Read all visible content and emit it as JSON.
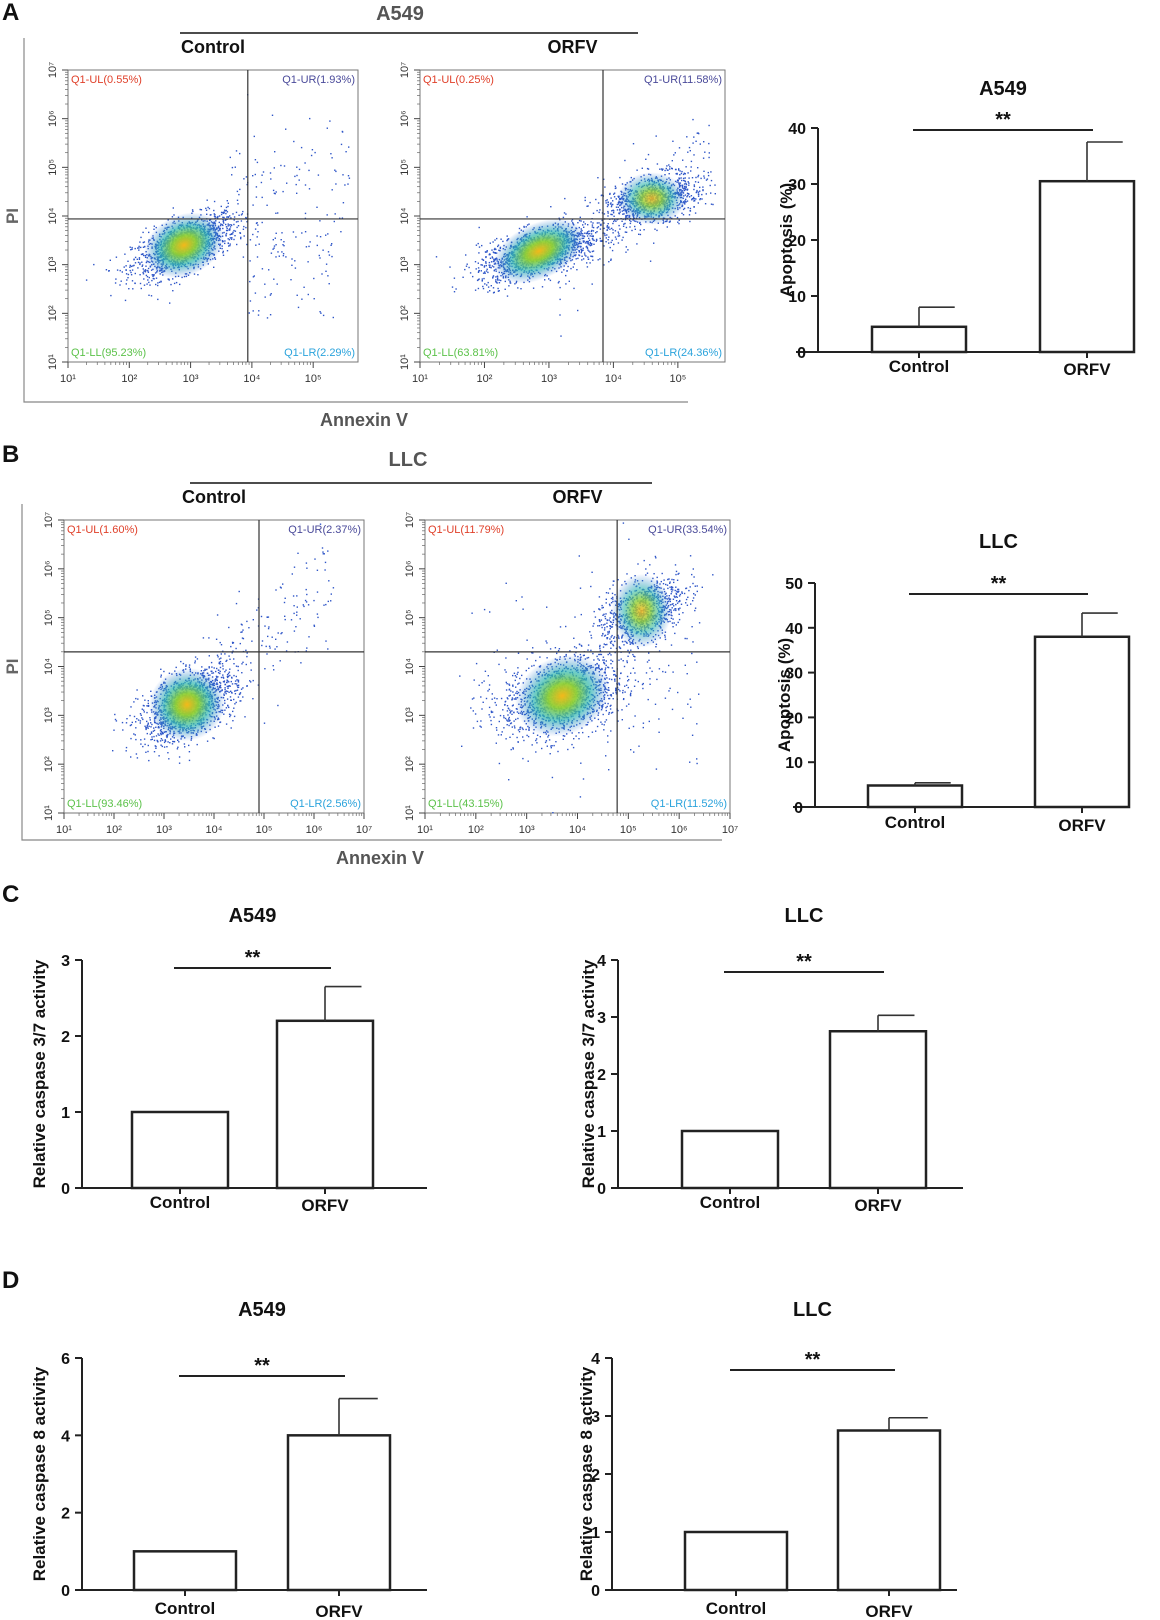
{
  "chart_data": [
    {
      "id": "A_flow_control",
      "type": "scatter",
      "panel": "A",
      "group_title": "A549",
      "title": "Control",
      "xlabel": "Annexin V",
      "ylabel": "PI",
      "scale": "log10",
      "x_ticks": [
        "10¹",
        "10²",
        "10³",
        "10⁴",
        "10⁵"
      ],
      "y_ticks": [
        "10¹",
        "10²",
        "10³",
        "10⁴",
        "10⁵",
        "10⁶",
        "10⁷"
      ],
      "quadrants": {
        "UL": "Q1-UL(0.55%)",
        "UR": "Q1-UR(1.93%)",
        "LL": "Q1-LL(95.23%)",
        "LR": "Q1-LR(2.29%)"
      },
      "quadrant_percent": {
        "UL": 0.55,
        "UR": 1.93,
        "LL": 95.23,
        "LR": 2.29
      }
    },
    {
      "id": "A_flow_orfv",
      "type": "scatter",
      "panel": "A",
      "group_title": "A549",
      "title": "ORFV",
      "xlabel": "Annexin V",
      "ylabel": "PI",
      "scale": "log10",
      "x_ticks": [
        "10¹",
        "10²",
        "10³",
        "10⁴",
        "10⁵"
      ],
      "y_ticks": [
        "10¹",
        "10²",
        "10³",
        "10⁴",
        "10⁵",
        "10⁶",
        "10⁷"
      ],
      "quadrants": {
        "UL": "Q1-UL(0.25%)",
        "UR": "Q1-UR(11.58%)",
        "LL": "Q1-LL(63.81%)",
        "LR": "Q1-LR(24.36%)"
      },
      "quadrant_percent": {
        "UL": 0.25,
        "UR": 11.58,
        "LL": 63.81,
        "LR": 24.36
      }
    },
    {
      "id": "B_flow_control",
      "type": "scatter",
      "panel": "B",
      "group_title": "LLC",
      "title": "Control",
      "xlabel": "Annexin V",
      "ylabel": "PI",
      "scale": "log10",
      "x_ticks": [
        "10¹",
        "10²",
        "10³",
        "10⁴",
        "10⁵",
        "10⁶",
        "10⁷"
      ],
      "y_ticks": [
        "10¹",
        "10²",
        "10³",
        "10⁴",
        "10⁵",
        "10⁶",
        "10⁷"
      ],
      "quadrants": {
        "UL": "Q1-UL(1.60%)",
        "UR": "Q1-UR(2.37%)",
        "LL": "Q1-LL(93.46%)",
        "LR": "Q1-LR(2.56%)"
      },
      "quadrant_percent": {
        "UL": 1.6,
        "UR": 2.37,
        "LL": 93.46,
        "LR": 2.56
      }
    },
    {
      "id": "B_flow_orfv",
      "type": "scatter",
      "panel": "B",
      "group_title": "LLC",
      "title": "ORFV",
      "xlabel": "Annexin V",
      "ylabel": "PI",
      "scale": "log10",
      "x_ticks": [
        "10¹",
        "10²",
        "10³",
        "10⁴",
        "10⁵",
        "10⁶",
        "10⁷"
      ],
      "y_ticks": [
        "10¹",
        "10²",
        "10³",
        "10⁴",
        "10⁵",
        "10⁶",
        "10⁷"
      ],
      "quadrants": {
        "UL": "Q1-UL(11.79%)",
        "UR": "Q1-UR(33.54%)",
        "LL": "Q1-LL(43.15%)",
        "LR": "Q1-LR(11.52%)"
      },
      "quadrant_percent": {
        "UL": 11.79,
        "UR": 33.54,
        "LL": 43.15,
        "LR": 11.52
      }
    },
    {
      "id": "A_bar",
      "type": "bar",
      "panel": "A",
      "title": "A549",
      "ylabel": "Apoptosis (%)",
      "categories": [
        "Control",
        "ORFV"
      ],
      "values": [
        4.5,
        30.5
      ],
      "errors": [
        3.5,
        7.0
      ],
      "ylim": [
        0,
        40
      ],
      "yticks": [
        0,
        10,
        20,
        30,
        40
      ],
      "significance": "**"
    },
    {
      "id": "B_bar",
      "type": "bar",
      "panel": "B",
      "title": "LLC",
      "ylabel": "Apoptosis (%)",
      "categories": [
        "Control",
        "ORFV"
      ],
      "values": [
        4.8,
        38.0
      ],
      "errors": [
        0.6,
        5.3
      ],
      "ylim": [
        0,
        50
      ],
      "yticks": [
        0,
        10,
        20,
        30,
        40,
        50
      ],
      "significance": "**"
    },
    {
      "id": "C_a549",
      "type": "bar",
      "panel": "C",
      "title": "A549",
      "ylabel": "Relative caspase 3/7 activity",
      "categories": [
        "Control",
        "ORFV"
      ],
      "values": [
        1.0,
        2.2
      ],
      "errors": [
        0,
        0.45
      ],
      "ylim": [
        0,
        3
      ],
      "yticks": [
        0,
        1,
        2,
        3
      ],
      "significance": "**"
    },
    {
      "id": "C_llc",
      "type": "bar",
      "panel": "C",
      "title": "LLC",
      "ylabel": "Relative caspase 3/7 activity",
      "categories": [
        "Control",
        "ORFV"
      ],
      "values": [
        1.0,
        2.75
      ],
      "errors": [
        0,
        0.28
      ],
      "ylim": [
        0,
        4
      ],
      "yticks": [
        0,
        1,
        2,
        3,
        4
      ],
      "significance": "**"
    },
    {
      "id": "D_a549",
      "type": "bar",
      "panel": "D",
      "title": "A549",
      "ylabel": "Relative caspase 8 activity",
      "categories": [
        "Control",
        "ORFV"
      ],
      "values": [
        1.0,
        4.0
      ],
      "errors": [
        0,
        0.95
      ],
      "ylim": [
        0,
        6
      ],
      "yticks": [
        0,
        2,
        4,
        6
      ],
      "significance": "**"
    },
    {
      "id": "D_llc",
      "type": "bar",
      "panel": "D",
      "title": "LLC",
      "ylabel": "Relative caspase 8 activity",
      "categories": [
        "Control",
        "ORFV"
      ],
      "values": [
        1.0,
        2.75
      ],
      "errors": [
        0,
        0.22
      ],
      "ylim": [
        0,
        4
      ],
      "yticks": [
        0,
        1,
        2,
        3,
        4
      ],
      "significance": "**"
    }
  ],
  "panel_labels": {
    "A": "A",
    "B": "B",
    "C": "C",
    "D": "D"
  },
  "group_titles": {
    "A": "A549",
    "B": "LLC"
  },
  "colors": {
    "ul": "#e0402a",
    "ur": "#4a4a9a",
    "ll": "#5cc24a",
    "lr": "#2ba3dc",
    "axis": "#222222",
    "flow_axis": "#888888"
  }
}
